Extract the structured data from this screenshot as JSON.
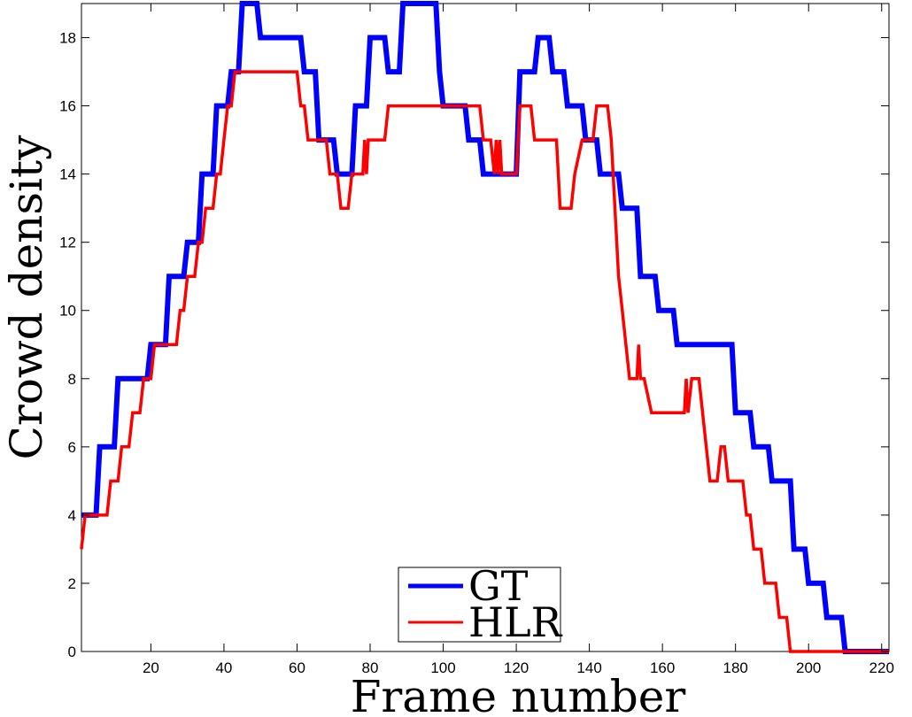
{
  "chart_data": {
    "type": "line",
    "title": "",
    "xlabel": "Frame number",
    "ylabel": "Crowd density",
    "xlim": [
      1,
      222
    ],
    "ylim": [
      0,
      19
    ],
    "x_ticks": [
      20,
      40,
      60,
      80,
      100,
      120,
      140,
      160,
      180,
      200,
      220
    ],
    "y_ticks": [
      0,
      2,
      4,
      6,
      8,
      10,
      12,
      14,
      16,
      18
    ],
    "grid": false,
    "legend_position": "bottom-center",
    "series": [
      {
        "name": "GT",
        "color": "#0000ff",
        "points": [
          [
            1,
            4
          ],
          [
            5,
            4
          ],
          [
            6,
            6
          ],
          [
            10,
            6
          ],
          [
            11,
            8
          ],
          [
            18,
            8
          ],
          [
            19,
            8
          ],
          [
            20,
            9
          ],
          [
            24,
            9
          ],
          [
            25,
            11
          ],
          [
            29,
            11
          ],
          [
            30,
            12
          ],
          [
            33,
            12
          ],
          [
            34,
            14
          ],
          [
            37,
            14
          ],
          [
            38,
            16
          ],
          [
            41,
            16
          ],
          [
            42,
            17
          ],
          [
            44,
            17
          ],
          [
            45,
            19
          ],
          [
            49,
            19
          ],
          [
            50,
            18
          ],
          [
            61,
            18
          ],
          [
            62,
            17
          ],
          [
            65,
            17
          ],
          [
            66,
            15
          ],
          [
            70,
            15
          ],
          [
            71,
            14
          ],
          [
            75,
            14
          ],
          [
            76,
            16
          ],
          [
            79,
            16
          ],
          [
            80,
            18
          ],
          [
            84,
            18
          ],
          [
            85,
            17
          ],
          [
            88,
            17
          ],
          [
            89,
            19
          ],
          [
            98,
            19
          ],
          [
            99,
            17
          ],
          [
            100,
            16
          ],
          [
            106,
            16
          ],
          [
            107,
            15
          ],
          [
            110,
            15
          ],
          [
            111,
            14
          ],
          [
            120,
            14
          ],
          [
            121,
            17
          ],
          [
            125,
            17
          ],
          [
            126,
            18
          ],
          [
            129,
            18
          ],
          [
            130,
            17
          ],
          [
            133,
            17
          ],
          [
            134,
            16
          ],
          [
            138,
            16
          ],
          [
            139,
            15
          ],
          [
            142,
            15
          ],
          [
            143,
            14
          ],
          [
            148,
            14
          ],
          [
            149,
            13
          ],
          [
            153,
            13
          ],
          [
            154,
            11
          ],
          [
            158,
            11
          ],
          [
            159,
            10
          ],
          [
            163,
            10
          ],
          [
            164,
            9
          ],
          [
            179,
            9
          ],
          [
            180,
            7
          ],
          [
            184,
            7
          ],
          [
            185,
            6
          ],
          [
            189,
            6
          ],
          [
            190,
            5
          ],
          [
            195,
            5
          ],
          [
            196,
            3
          ],
          [
            199,
            3
          ],
          [
            200,
            2
          ],
          [
            204,
            2
          ],
          [
            205,
            1
          ],
          [
            209,
            1
          ],
          [
            210,
            0
          ],
          [
            222,
            0
          ]
        ]
      },
      {
        "name": "HLR",
        "color": "#ff0000",
        "points": [
          [
            1,
            3
          ],
          [
            2,
            4
          ],
          [
            8,
            4
          ],
          [
            9,
            5
          ],
          [
            11,
            5
          ],
          [
            12,
            6
          ],
          [
            14,
            6
          ],
          [
            15,
            7
          ],
          [
            17,
            7
          ],
          [
            18,
            8
          ],
          [
            20,
            8
          ],
          [
            21,
            9
          ],
          [
            27,
            9
          ],
          [
            28,
            10
          ],
          [
            29,
            10
          ],
          [
            30,
            11
          ],
          [
            32,
            11
          ],
          [
            33,
            12
          ],
          [
            34,
            12
          ],
          [
            35,
            13
          ],
          [
            37,
            13
          ],
          [
            38,
            14
          ],
          [
            39,
            14
          ],
          [
            40,
            15
          ],
          [
            41,
            16
          ],
          [
            42,
            16
          ],
          [
            43,
            17
          ],
          [
            60,
            17
          ],
          [
            61,
            16
          ],
          [
            62,
            16
          ],
          [
            63,
            15
          ],
          [
            68,
            15
          ],
          [
            69,
            14
          ],
          [
            71,
            14
          ],
          [
            72,
            13
          ],
          [
            74,
            13
          ],
          [
            75,
            14
          ],
          [
            78,
            14
          ],
          [
            78.5,
            15
          ],
          [
            79,
            14
          ],
          [
            79.5,
            15
          ],
          [
            84,
            15
          ],
          [
            85,
            16
          ],
          [
            110,
            16
          ],
          [
            111,
            15
          ],
          [
            113,
            15
          ],
          [
            114,
            14
          ],
          [
            114.5,
            15
          ],
          [
            115,
            14
          ],
          [
            115.5,
            15
          ],
          [
            116,
            14
          ],
          [
            120,
            14
          ],
          [
            121,
            16
          ],
          [
            124,
            16
          ],
          [
            125,
            15
          ],
          [
            131,
            15
          ],
          [
            132,
            13
          ],
          [
            135,
            13
          ],
          [
            136,
            14
          ],
          [
            138,
            15
          ],
          [
            141,
            15
          ],
          [
            142,
            16
          ],
          [
            145,
            16
          ],
          [
            146,
            15
          ],
          [
            147,
            13
          ],
          [
            148,
            11
          ],
          [
            149,
            10
          ],
          [
            150,
            9
          ],
          [
            151,
            8
          ],
          [
            153,
            8
          ],
          [
            153.5,
            9
          ],
          [
            154,
            8
          ],
          [
            155,
            8
          ],
          [
            157,
            7
          ],
          [
            166,
            7
          ],
          [
            166.5,
            8
          ],
          [
            167,
            7
          ],
          [
            168,
            8
          ],
          [
            170,
            8
          ],
          [
            171,
            7
          ],
          [
            173,
            5
          ],
          [
            175,
            5
          ],
          [
            176,
            6
          ],
          [
            177,
            6
          ],
          [
            178,
            5
          ],
          [
            182,
            5
          ],
          [
            183,
            4
          ],
          [
            184,
            4
          ],
          [
            185,
            3
          ],
          [
            187,
            3
          ],
          [
            188,
            2
          ],
          [
            191,
            2
          ],
          [
            192,
            1
          ],
          [
            194,
            1
          ],
          [
            195,
            0
          ],
          [
            222,
            0
          ]
        ]
      }
    ]
  }
}
